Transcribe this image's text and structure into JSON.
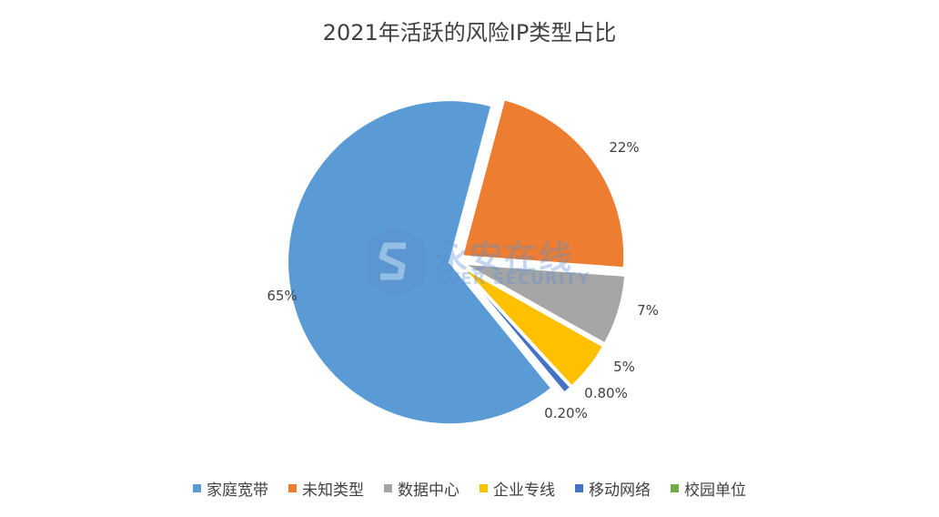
{
  "chart_data": {
    "type": "pie",
    "title": "2021年活跃的风险IP类型占比",
    "categories": [
      "家庭宽带",
      "未知类型",
      "数据中心",
      "企业专线",
      "移动网络",
      "校园单位"
    ],
    "values": [
      65,
      22,
      7,
      5,
      0.8,
      0.2
    ],
    "data_labels": [
      "65%",
      "22%",
      "7%",
      "5%",
      "0.80%",
      "0.20%"
    ],
    "colors": [
      "#5b9bd5",
      "#ed7d31",
      "#a5a5a5",
      "#ffc000",
      "#4472c4",
      "#70ad47"
    ],
    "legend_position": "bottom",
    "exploded": true
  },
  "watermark": {
    "main": "永安在线",
    "sub": "EVER SECURITY",
    "color": "#5b8fd0",
    "icon": "shield-s-logo-icon"
  }
}
